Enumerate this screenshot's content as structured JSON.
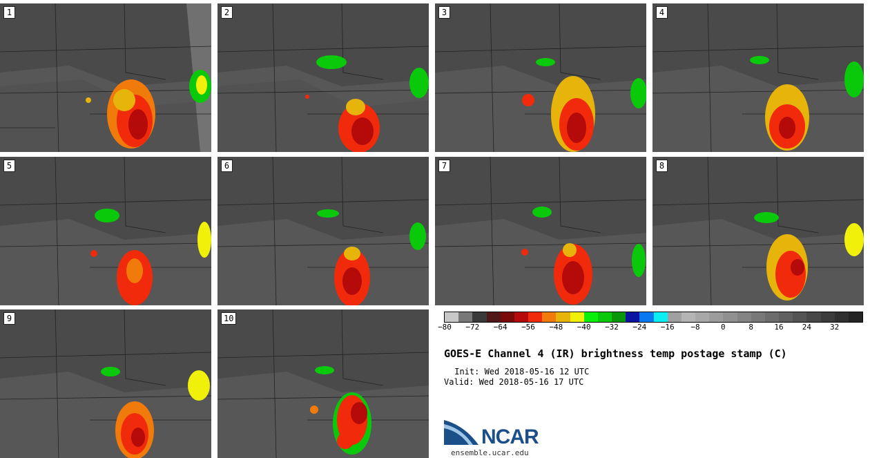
{
  "title": "GOES-E Channel 4 (IR) brightness temp postage stamp (C)",
  "init_line": " Init: Wed 2018-05-16 12 UTC",
  "valid_line": "Valid: Wed 2018-05-16 17 UTC",
  "org": "NCAR",
  "website": "ensemble.ucar.edu",
  "panels": [
    {
      "label": "1"
    },
    {
      "label": "2"
    },
    {
      "label": "3"
    },
    {
      "label": "4"
    },
    {
      "label": "5"
    },
    {
      "label": "6"
    },
    {
      "label": "7"
    },
    {
      "label": "8"
    },
    {
      "label": "9"
    },
    {
      "label": "10"
    }
  ],
  "colorbar": {
    "unit": "C",
    "min": -80,
    "max": 40,
    "step": 4,
    "tick_labels": [
      "−80",
      "−72",
      "−64",
      "−56",
      "−48",
      "−40",
      "−32",
      "−24",
      "−16",
      "−8",
      "0",
      "8",
      "16",
      "24",
      "32"
    ],
    "colors": [
      "#c8c8c8",
      "#787878",
      "#3a3a3a",
      "#501818",
      "#7a0a0a",
      "#b40a0a",
      "#f02a0a",
      "#f07a0a",
      "#e6b40a",
      "#f0f00a",
      "#0af00a",
      "#0ac80a",
      "#0a960a",
      "#0a14a0",
      "#0a78f0",
      "#0af0f0",
      "#a0a0a0",
      "#b4b4b4",
      "#a8a8a8",
      "#9c9c9c",
      "#909090",
      "#848484",
      "#787878",
      "#6c6c6c",
      "#606060",
      "#545454",
      "#484848",
      "#3c3c3c",
      "#303030",
      "#242424"
    ]
  }
}
